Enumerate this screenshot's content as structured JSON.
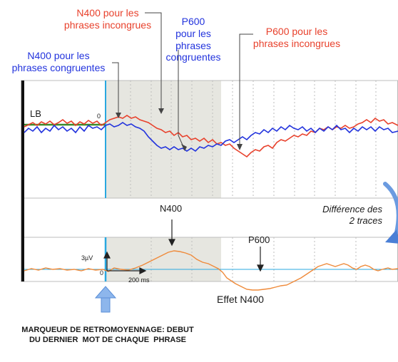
{
  "labels": {
    "n400_incongruent": "N400 pour les\nphrases incongrues",
    "p600_congruent": "P600\npour les\nphrases\ncongruentes",
    "p600_incongruent": "P600 pour les\nphrases incongrues",
    "n400_congruent": "N400 pour les\nphrases congruentes",
    "lb": "LB",
    "zero_top": "0",
    "n400": "N400",
    "difference": "Différence des\n2 traces",
    "p600": "P600",
    "amplitude": "3µV",
    "zero_bottom": "0",
    "time": "200 ms",
    "effet": "Effet N400",
    "marker": "MARQUEUR DE RETROMOYENNAGE: DEBUT\nDU DERNIER  MOT DE CHAQUE  PHRASE"
  },
  "colors": {
    "incongruent": "#e8412c",
    "congruent": "#2233dd",
    "difference": "#ef8a3a",
    "onset": "#29a8e0",
    "shade": "#e6e6e0",
    "baseline": "#3a8a2a"
  }
}
